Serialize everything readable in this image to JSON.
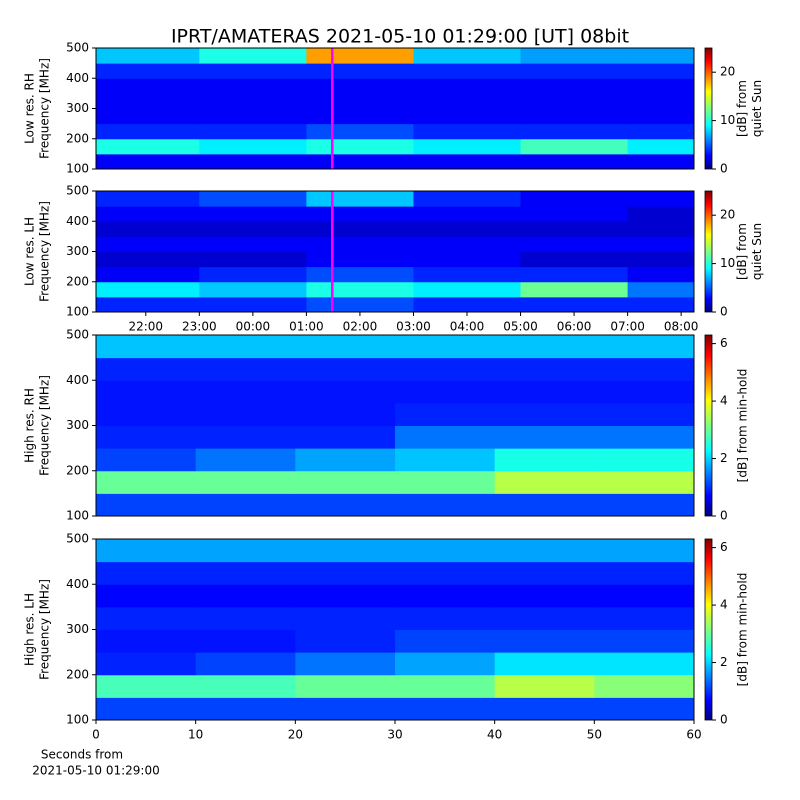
{
  "chart_data": [
    {
      "type": "heatmap",
      "title": "IPRT/AMATERAS 2021-05-10 01:29:00 [UT]   08bit",
      "ylabel": [
        "Low res. RH",
        "Frequency [MHz]"
      ],
      "colorbar_label": [
        "[dB] from",
        "quiet Sun"
      ],
      "colormap": "jet",
      "cursor_x": 1.4833,
      "cursor_color": "#ff00ff",
      "xlim": [
        -2.93,
        8.24
      ],
      "ylim": [
        100,
        500
      ],
      "yticks": [
        100,
        200,
        300,
        400,
        500
      ],
      "clim": [
        0,
        25
      ],
      "cticks": [
        0,
        10,
        20
      ],
      "x_bins": [
        -2.93,
        -1,
        1,
        3,
        5,
        7,
        8.24
      ],
      "y_bins": [
        100,
        150,
        200,
        250,
        300,
        350,
        400,
        450,
        500
      ],
      "z": [
        [
          3,
          3,
          3,
          3,
          3,
          3
        ],
        [
          10,
          9,
          10,
          9,
          11,
          9
        ],
        [
          4,
          4,
          5,
          4,
          4,
          4
        ],
        [
          3,
          3,
          3,
          3,
          3,
          3
        ],
        [
          3,
          3,
          3,
          3,
          3,
          3
        ],
        [
          3,
          3,
          3,
          3,
          3,
          3
        ],
        [
          4,
          4,
          4,
          4,
          4,
          4
        ],
        [
          8,
          10,
          18,
          8,
          7,
          7
        ]
      ]
    },
    {
      "type": "heatmap",
      "ylabel": [
        "Low res. LH",
        "Frequency [MHz]"
      ],
      "colorbar_label": [
        "[dB] from",
        "quiet Sun"
      ],
      "colormap": "jet",
      "cursor_x": 1.4833,
      "cursor_color": "#ff00ff",
      "xlim": [
        -2.93,
        8.24
      ],
      "ylim": [
        100,
        500
      ],
      "yticks": [
        100,
        200,
        300,
        400,
        500
      ],
      "xticks": [
        {
          "value": -2,
          "label": "22:00"
        },
        {
          "value": -1,
          "label": "23:00"
        },
        {
          "value": 0,
          "label": "00:00"
        },
        {
          "value": 1,
          "label": "01:00"
        },
        {
          "value": 2,
          "label": "02:00"
        },
        {
          "value": 3,
          "label": "03:00"
        },
        {
          "value": 4,
          "label": "04:00"
        },
        {
          "value": 5,
          "label": "05:00"
        },
        {
          "value": 6,
          "label": "06:00"
        },
        {
          "value": 7,
          "label": "07:00"
        },
        {
          "value": 8,
          "label": "08:00"
        }
      ],
      "clim": [
        0,
        25
      ],
      "cticks": [
        0,
        10,
        20
      ],
      "x_bins": [
        -2.93,
        -1,
        1,
        3,
        5,
        7,
        8.24
      ],
      "y_bins": [
        100,
        150,
        200,
        250,
        300,
        350,
        400,
        450,
        500
      ],
      "z": [
        [
          4,
          4,
          5,
          4,
          4,
          4
        ],
        [
          9,
          8,
          10,
          9,
          12,
          6
        ],
        [
          3,
          4,
          5,
          4,
          4,
          3
        ],
        [
          2,
          2,
          3,
          3,
          2,
          2
        ],
        [
          3,
          3,
          3,
          3,
          3,
          3
        ],
        [
          2,
          2,
          2,
          2,
          2,
          2
        ],
        [
          3,
          3,
          3,
          3,
          3,
          2
        ],
        [
          4,
          5,
          8,
          4,
          3,
          3
        ]
      ]
    },
    {
      "type": "heatmap",
      "ylabel": [
        "High res. RH",
        "Frequency [MHz]"
      ],
      "colorbar_label": [
        "[dB] from min-hold"
      ],
      "colormap": "jet",
      "xlim": [
        0,
        60
      ],
      "ylim": [
        100,
        500
      ],
      "yticks": [
        100,
        200,
        300,
        400,
        500
      ],
      "clim": [
        0,
        6.3
      ],
      "cticks": [
        0,
        2,
        4,
        6
      ],
      "x_bins": [
        0,
        10,
        20,
        30,
        40,
        50,
        60
      ],
      "y_bins": [
        100,
        150,
        200,
        250,
        300,
        350,
        400,
        450,
        500
      ],
      "z": [
        [
          1.2,
          1.2,
          1.2,
          1.2,
          1.2,
          1.2
        ],
        [
          3,
          3,
          3,
          3,
          3.5,
          3.5
        ],
        [
          1.2,
          1.5,
          1.8,
          2,
          2.5,
          2.5
        ],
        [
          1,
          1,
          1,
          1.5,
          1.5,
          1.5
        ],
        [
          0.9,
          0.9,
          0.9,
          1,
          1,
          1
        ],
        [
          0.9,
          0.9,
          0.9,
          0.9,
          0.9,
          0.9
        ],
        [
          1,
          1,
          1,
          1,
          1,
          1
        ],
        [
          2,
          2,
          2,
          2,
          2,
          2
        ]
      ]
    },
    {
      "type": "heatmap",
      "ylabel": [
        "High res. LH",
        "Frequency [MHz]"
      ],
      "colorbar_label": [
        "[dB] from min-hold"
      ],
      "colormap": "jet",
      "xlim": [
        0,
        60
      ],
      "ylim": [
        100,
        500
      ],
      "yticks": [
        100,
        200,
        300,
        400,
        500
      ],
      "xticks": [
        0,
        10,
        20,
        30,
        40,
        50,
        60
      ],
      "xlabel": [
        "Seconds from",
        "2021-05-10 01:29:00"
      ],
      "clim": [
        0,
        6.3
      ],
      "cticks": [
        0,
        2,
        4,
        6
      ],
      "x_bins": [
        0,
        10,
        20,
        30,
        40,
        50,
        60
      ],
      "y_bins": [
        100,
        150,
        200,
        250,
        300,
        350,
        400,
        450,
        500
      ],
      "z": [
        [
          1.2,
          1.2,
          1.2,
          1.2,
          1.2,
          1.2
        ],
        [
          2.8,
          2.8,
          3,
          3,
          3.5,
          3.2
        ],
        [
          1,
          1.2,
          1.5,
          1.8,
          2.2,
          2.2
        ],
        [
          0.9,
          0.9,
          1,
          1.2,
          1.2,
          1.2
        ],
        [
          1,
          1,
          1,
          1,
          1,
          1
        ],
        [
          0.8,
          0.8,
          0.8,
          0.8,
          0.8,
          0.8
        ],
        [
          1,
          1,
          1,
          1,
          1,
          1
        ],
        [
          1.8,
          1.8,
          1.8,
          1.8,
          1.8,
          1.8
        ]
      ]
    }
  ]
}
